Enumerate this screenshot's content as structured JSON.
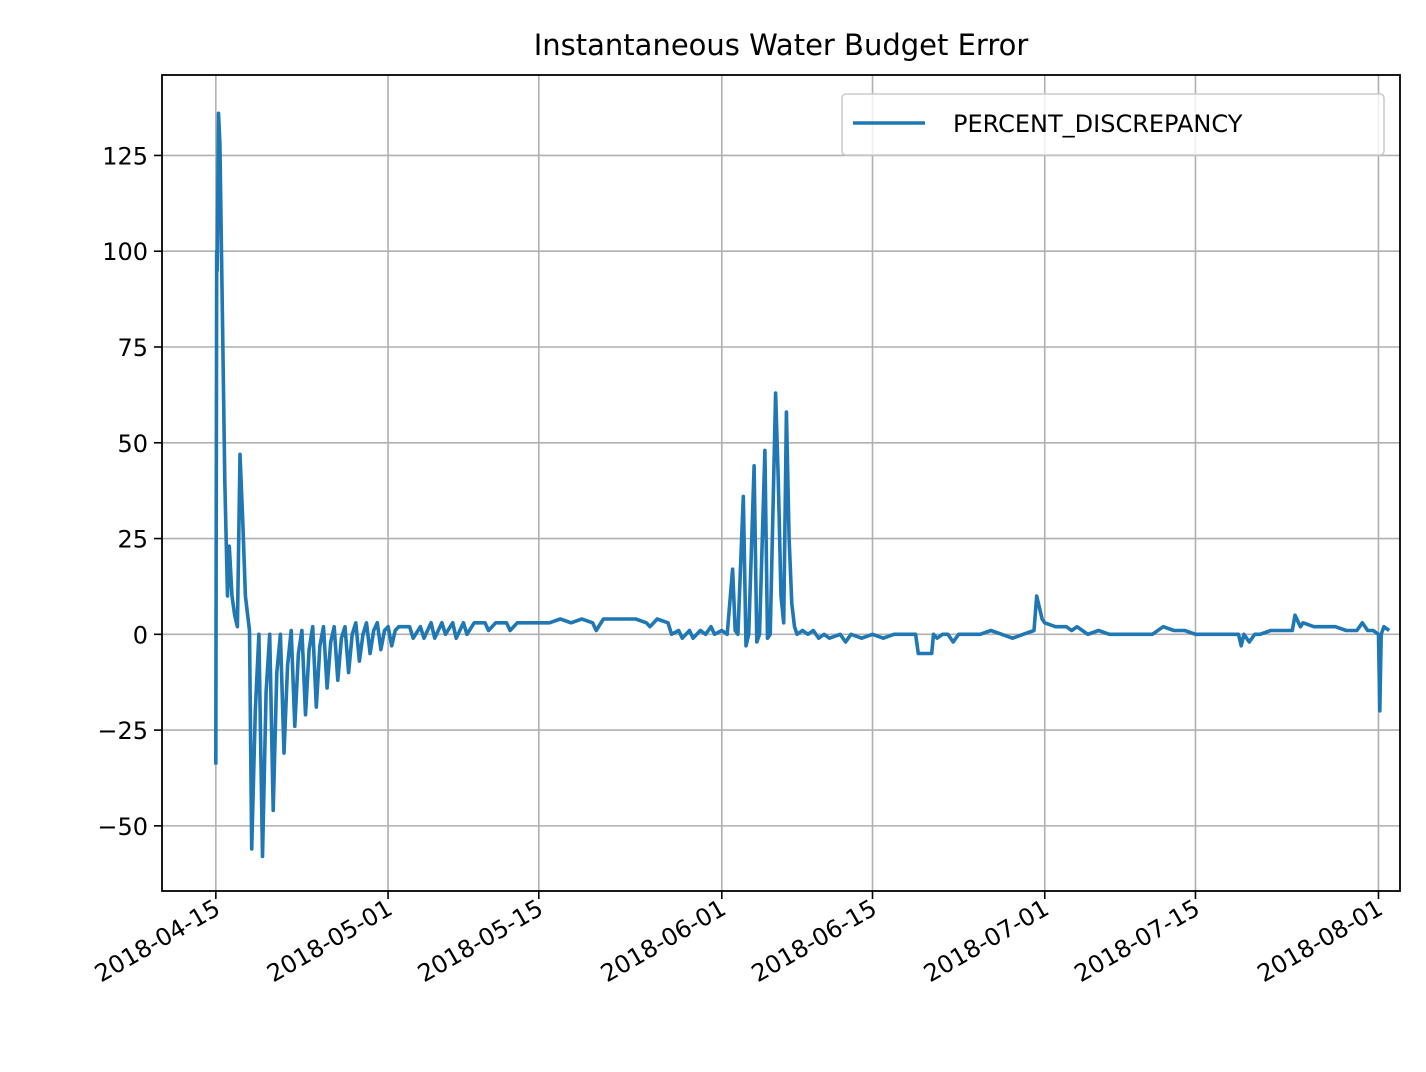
{
  "chart_data": {
    "type": "line",
    "title": "Instantaneous Water Budget Error",
    "xlabel": "",
    "ylabel": "",
    "x_axis_type": "date",
    "xlim": [
      "2018-04-10",
      "2018-08-03"
    ],
    "ylim": [
      -67,
      146
    ],
    "x_ticks": [
      "2018-04-15",
      "2018-05-01",
      "2018-05-15",
      "2018-06-01",
      "2018-06-15",
      "2018-07-01",
      "2018-07-15",
      "2018-08-01"
    ],
    "y_ticks": [
      -50,
      -25,
      0,
      25,
      50,
      75,
      100,
      125
    ],
    "y_tick_labels": [
      "−50",
      "−25",
      "0",
      "25",
      "50",
      "75",
      "100",
      "125"
    ],
    "grid": true,
    "legend_position": "top-right",
    "colors": {
      "series": "#1f77b4",
      "grid": "#b0b0b0",
      "axes": "#000000"
    },
    "series": [
      {
        "name": "PERCENT_DISCREPANCY",
        "points": [
          [
            "2018-04-15T00:00",
            -34
          ],
          [
            "2018-04-15T02:00",
            100
          ],
          [
            "2018-04-15T03:00",
            95
          ],
          [
            "2018-04-15T06:00",
            136
          ],
          [
            "2018-04-15T09:00",
            128
          ],
          [
            "2018-04-15T15:00",
            80
          ],
          [
            "2018-04-15T20:00",
            40
          ],
          [
            "2018-04-16T02:00",
            10
          ],
          [
            "2018-04-16T06:00",
            23
          ],
          [
            "2018-04-16T12:00",
            10
          ],
          [
            "2018-04-16T18:00",
            5
          ],
          [
            "2018-04-17T00:00",
            2
          ],
          [
            "2018-04-17T06:00",
            47
          ],
          [
            "2018-04-17T12:00",
            30
          ],
          [
            "2018-04-17T18:00",
            10
          ],
          [
            "2018-04-18T03:00",
            1
          ],
          [
            "2018-04-18T08:00",
            -56
          ],
          [
            "2018-04-18T16:00",
            -20
          ],
          [
            "2018-04-19T00:00",
            0
          ],
          [
            "2018-04-19T08:00",
            -58
          ],
          [
            "2018-04-19T16:00",
            -15
          ],
          [
            "2018-04-20T00:00",
            0
          ],
          [
            "2018-04-20T08:00",
            -46
          ],
          [
            "2018-04-20T16:00",
            -10
          ],
          [
            "2018-04-21T00:00",
            0
          ],
          [
            "2018-04-21T08:00",
            -31
          ],
          [
            "2018-04-21T16:00",
            -8
          ],
          [
            "2018-04-22T00:00",
            1
          ],
          [
            "2018-04-22T08:00",
            -24
          ],
          [
            "2018-04-22T16:00",
            -5
          ],
          [
            "2018-04-23T00:00",
            1
          ],
          [
            "2018-04-23T08:00",
            -21
          ],
          [
            "2018-04-23T16:00",
            -4
          ],
          [
            "2018-04-24T00:00",
            2
          ],
          [
            "2018-04-24T08:00",
            -19
          ],
          [
            "2018-04-24T16:00",
            -3
          ],
          [
            "2018-04-25T00:00",
            2
          ],
          [
            "2018-04-25T08:00",
            -14
          ],
          [
            "2018-04-25T16:00",
            -2
          ],
          [
            "2018-04-26T00:00",
            2
          ],
          [
            "2018-04-26T08:00",
            -12
          ],
          [
            "2018-04-26T16:00",
            -1
          ],
          [
            "2018-04-27T00:00",
            2
          ],
          [
            "2018-04-27T08:00",
            -10
          ],
          [
            "2018-04-27T16:00",
            0
          ],
          [
            "2018-04-28T00:00",
            3
          ],
          [
            "2018-04-28T08:00",
            -7
          ],
          [
            "2018-04-28T16:00",
            0
          ],
          [
            "2018-04-29T00:00",
            3
          ],
          [
            "2018-04-29T08:00",
            -5
          ],
          [
            "2018-04-29T16:00",
            1
          ],
          [
            "2018-04-30T00:00",
            3
          ],
          [
            "2018-04-30T08:00",
            -4
          ],
          [
            "2018-04-30T16:00",
            1
          ],
          [
            "2018-05-01T00:00",
            2
          ],
          [
            "2018-05-01T08:00",
            -3
          ],
          [
            "2018-05-01T16:00",
            1
          ],
          [
            "2018-05-02T00:00",
            2
          ],
          [
            "2018-05-03T00:00",
            2
          ],
          [
            "2018-05-03T08:00",
            -1
          ],
          [
            "2018-05-04T00:00",
            2
          ],
          [
            "2018-05-04T08:00",
            -1
          ],
          [
            "2018-05-05T00:00",
            3
          ],
          [
            "2018-05-05T08:00",
            -1
          ],
          [
            "2018-05-06T00:00",
            3
          ],
          [
            "2018-05-06T08:00",
            0
          ],
          [
            "2018-05-07T00:00",
            3
          ],
          [
            "2018-05-07T08:00",
            -1
          ],
          [
            "2018-05-08T00:00",
            3
          ],
          [
            "2018-05-08T08:00",
            0
          ],
          [
            "2018-05-09T00:00",
            3
          ],
          [
            "2018-05-10T00:00",
            3
          ],
          [
            "2018-05-10T08:00",
            1
          ],
          [
            "2018-05-11T00:00",
            3
          ],
          [
            "2018-05-12T00:00",
            3
          ],
          [
            "2018-05-12T08:00",
            1
          ],
          [
            "2018-05-13T00:00",
            3
          ],
          [
            "2018-05-14T00:00",
            3
          ],
          [
            "2018-05-15T00:00",
            3
          ],
          [
            "2018-05-16T00:00",
            3
          ],
          [
            "2018-05-17T00:00",
            4
          ],
          [
            "2018-05-18T00:00",
            3
          ],
          [
            "2018-05-19T00:00",
            4
          ],
          [
            "2018-05-20T00:00",
            3
          ],
          [
            "2018-05-20T08:00",
            1
          ],
          [
            "2018-05-21T00:00",
            4
          ],
          [
            "2018-05-22T00:00",
            4
          ],
          [
            "2018-05-23T00:00",
            4
          ],
          [
            "2018-05-24T00:00",
            4
          ],
          [
            "2018-05-25T00:00",
            3
          ],
          [
            "2018-05-25T08:00",
            2
          ],
          [
            "2018-05-26T00:00",
            4
          ],
          [
            "2018-05-27T00:00",
            3
          ],
          [
            "2018-05-27T08:00",
            0
          ],
          [
            "2018-05-28T00:00",
            1
          ],
          [
            "2018-05-28T08:00",
            -1
          ],
          [
            "2018-05-29T00:00",
            1
          ],
          [
            "2018-05-29T08:00",
            -1
          ],
          [
            "2018-05-30T00:00",
            1
          ],
          [
            "2018-05-30T12:00",
            0
          ],
          [
            "2018-05-31T00:00",
            2
          ],
          [
            "2018-05-31T08:00",
            0
          ],
          [
            "2018-06-01T00:00",
            1
          ],
          [
            "2018-06-01T12:00",
            0
          ],
          [
            "2018-06-02T00:00",
            17
          ],
          [
            "2018-06-02T06:00",
            1
          ],
          [
            "2018-06-02T12:00",
            0
          ],
          [
            "2018-06-03T00:00",
            36
          ],
          [
            "2018-06-03T06:00",
            -3
          ],
          [
            "2018-06-03T12:00",
            0
          ],
          [
            "2018-06-04T00:00",
            44
          ],
          [
            "2018-06-04T06:00",
            -2
          ],
          [
            "2018-06-04T12:00",
            0
          ],
          [
            "2018-06-05T00:00",
            48
          ],
          [
            "2018-06-05T06:00",
            -1
          ],
          [
            "2018-06-05T12:00",
            0
          ],
          [
            "2018-06-06T00:00",
            63
          ],
          [
            "2018-06-06T06:00",
            40
          ],
          [
            "2018-06-06T12:00",
            10
          ],
          [
            "2018-06-06T18:00",
            3
          ],
          [
            "2018-06-07T00:00",
            58
          ],
          [
            "2018-06-07T06:00",
            25
          ],
          [
            "2018-06-07T12:00",
            8
          ],
          [
            "2018-06-07T18:00",
            2
          ],
          [
            "2018-06-08T00:00",
            0
          ],
          [
            "2018-06-08T12:00",
            1
          ],
          [
            "2018-06-09T00:00",
            0
          ],
          [
            "2018-06-09T12:00",
            1
          ],
          [
            "2018-06-10T00:00",
            -1
          ],
          [
            "2018-06-10T12:00",
            0
          ],
          [
            "2018-06-11T00:00",
            -1
          ],
          [
            "2018-06-12T00:00",
            0
          ],
          [
            "2018-06-12T12:00",
            -2
          ],
          [
            "2018-06-13T00:00",
            0
          ],
          [
            "2018-06-14T00:00",
            -1
          ],
          [
            "2018-06-15T00:00",
            0
          ],
          [
            "2018-06-16T00:00",
            -1
          ],
          [
            "2018-06-17T00:00",
            0
          ],
          [
            "2018-06-18T00:00",
            0
          ],
          [
            "2018-06-19T00:00",
            0
          ],
          [
            "2018-06-19T06:00",
            -5
          ],
          [
            "2018-06-20T12:00",
            -5
          ],
          [
            "2018-06-20T16:00",
            0
          ],
          [
            "2018-06-21T00:00",
            -1
          ],
          [
            "2018-06-21T12:00",
            0
          ],
          [
            "2018-06-22T00:00",
            0
          ],
          [
            "2018-06-22T12:00",
            -2
          ],
          [
            "2018-06-23T00:00",
            0
          ],
          [
            "2018-06-24T00:00",
            0
          ],
          [
            "2018-06-25T00:00",
            0
          ],
          [
            "2018-06-26T00:00",
            1
          ],
          [
            "2018-06-27T00:00",
            0
          ],
          [
            "2018-06-28T00:00",
            -1
          ],
          [
            "2018-06-29T00:00",
            0
          ],
          [
            "2018-06-30T00:00",
            1
          ],
          [
            "2018-06-30T06:00",
            10
          ],
          [
            "2018-06-30T18:00",
            4
          ],
          [
            "2018-07-01T00:00",
            3
          ],
          [
            "2018-07-02T00:00",
            2
          ],
          [
            "2018-07-03T00:00",
            2
          ],
          [
            "2018-07-03T12:00",
            1
          ],
          [
            "2018-07-04T00:00",
            2
          ],
          [
            "2018-07-04T12:00",
            1
          ],
          [
            "2018-07-05T00:00",
            0
          ],
          [
            "2018-07-06T00:00",
            1
          ],
          [
            "2018-07-07T00:00",
            0
          ],
          [
            "2018-07-08T00:00",
            0
          ],
          [
            "2018-07-09T00:00",
            0
          ],
          [
            "2018-07-10T00:00",
            0
          ],
          [
            "2018-07-11T00:00",
            0
          ],
          [
            "2018-07-12T00:00",
            2
          ],
          [
            "2018-07-13T00:00",
            1
          ],
          [
            "2018-07-14T00:00",
            1
          ],
          [
            "2018-07-15T00:00",
            0
          ],
          [
            "2018-07-16T00:00",
            0
          ],
          [
            "2018-07-17T00:00",
            0
          ],
          [
            "2018-07-18T00:00",
            0
          ],
          [
            "2018-07-19T00:00",
            0
          ],
          [
            "2018-07-19T06:00",
            -3
          ],
          [
            "2018-07-19T12:00",
            0
          ],
          [
            "2018-07-20T00:00",
            -2
          ],
          [
            "2018-07-20T12:00",
            0
          ],
          [
            "2018-07-21T00:00",
            0
          ],
          [
            "2018-07-22T00:00",
            1
          ],
          [
            "2018-07-23T00:00",
            1
          ],
          [
            "2018-07-24T00:00",
            1
          ],
          [
            "2018-07-24T06:00",
            5
          ],
          [
            "2018-07-24T18:00",
            2
          ],
          [
            "2018-07-25T00:00",
            3
          ],
          [
            "2018-07-26T00:00",
            2
          ],
          [
            "2018-07-27T00:00",
            2
          ],
          [
            "2018-07-28T00:00",
            2
          ],
          [
            "2018-07-29T00:00",
            1
          ],
          [
            "2018-07-30T00:00",
            1
          ],
          [
            "2018-07-30T12:00",
            3
          ],
          [
            "2018-07-31T00:00",
            1
          ],
          [
            "2018-07-31T12:00",
            1
          ],
          [
            "2018-08-01T00:00",
            0
          ],
          [
            "2018-08-01T03:00",
            -20
          ],
          [
            "2018-08-01T06:00",
            0
          ],
          [
            "2018-08-01T12:00",
            2
          ],
          [
            "2018-08-02T00:00",
            1
          ]
        ]
      }
    ]
  }
}
